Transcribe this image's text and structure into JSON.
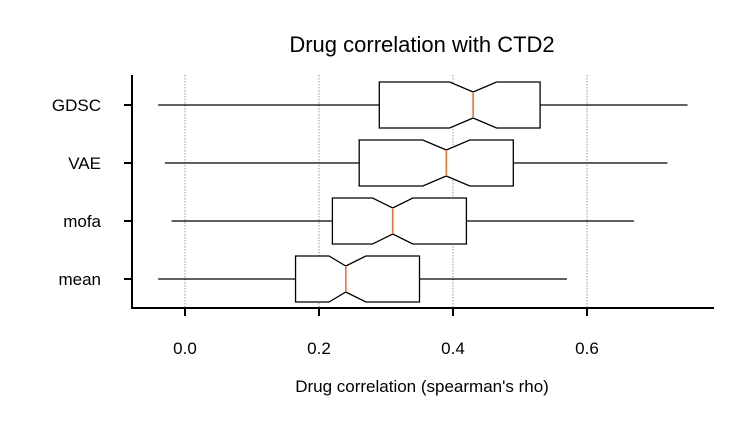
{
  "chart_data": {
    "type": "box",
    "orientation": "horizontal",
    "notched": true,
    "title": "Drug correlation with CTD2",
    "xlabel": "Drug correlation (spearman's rho)",
    "ylabel": "",
    "xlim": [
      -0.08,
      0.79
    ],
    "xticks": [
      0.0,
      0.2,
      0.4,
      0.6
    ],
    "xtick_labels": [
      "0.0",
      "0.2",
      "0.4",
      "0.6"
    ],
    "grid": "x, dotted",
    "median_color": "#e8743b",
    "series": [
      {
        "label": "GDSC",
        "whisker_low": -0.04,
        "q1": 0.29,
        "notch_low": 0.395,
        "median": 0.43,
        "notch_high": 0.465,
        "q3": 0.53,
        "whisker_high": 0.75
      },
      {
        "label": "VAE",
        "whisker_low": -0.03,
        "q1": 0.26,
        "notch_low": 0.355,
        "median": 0.39,
        "notch_high": 0.425,
        "q3": 0.49,
        "whisker_high": 0.72
      },
      {
        "label": "mofa",
        "whisker_low": -0.02,
        "q1": 0.22,
        "notch_low": 0.28,
        "median": 0.31,
        "notch_high": 0.34,
        "q3": 0.42,
        "whisker_high": 0.67
      },
      {
        "label": "mean",
        "whisker_low": -0.04,
        "q1": 0.165,
        "notch_low": 0.215,
        "median": 0.24,
        "notch_high": 0.27,
        "q3": 0.35,
        "whisker_high": 0.57
      }
    ]
  }
}
